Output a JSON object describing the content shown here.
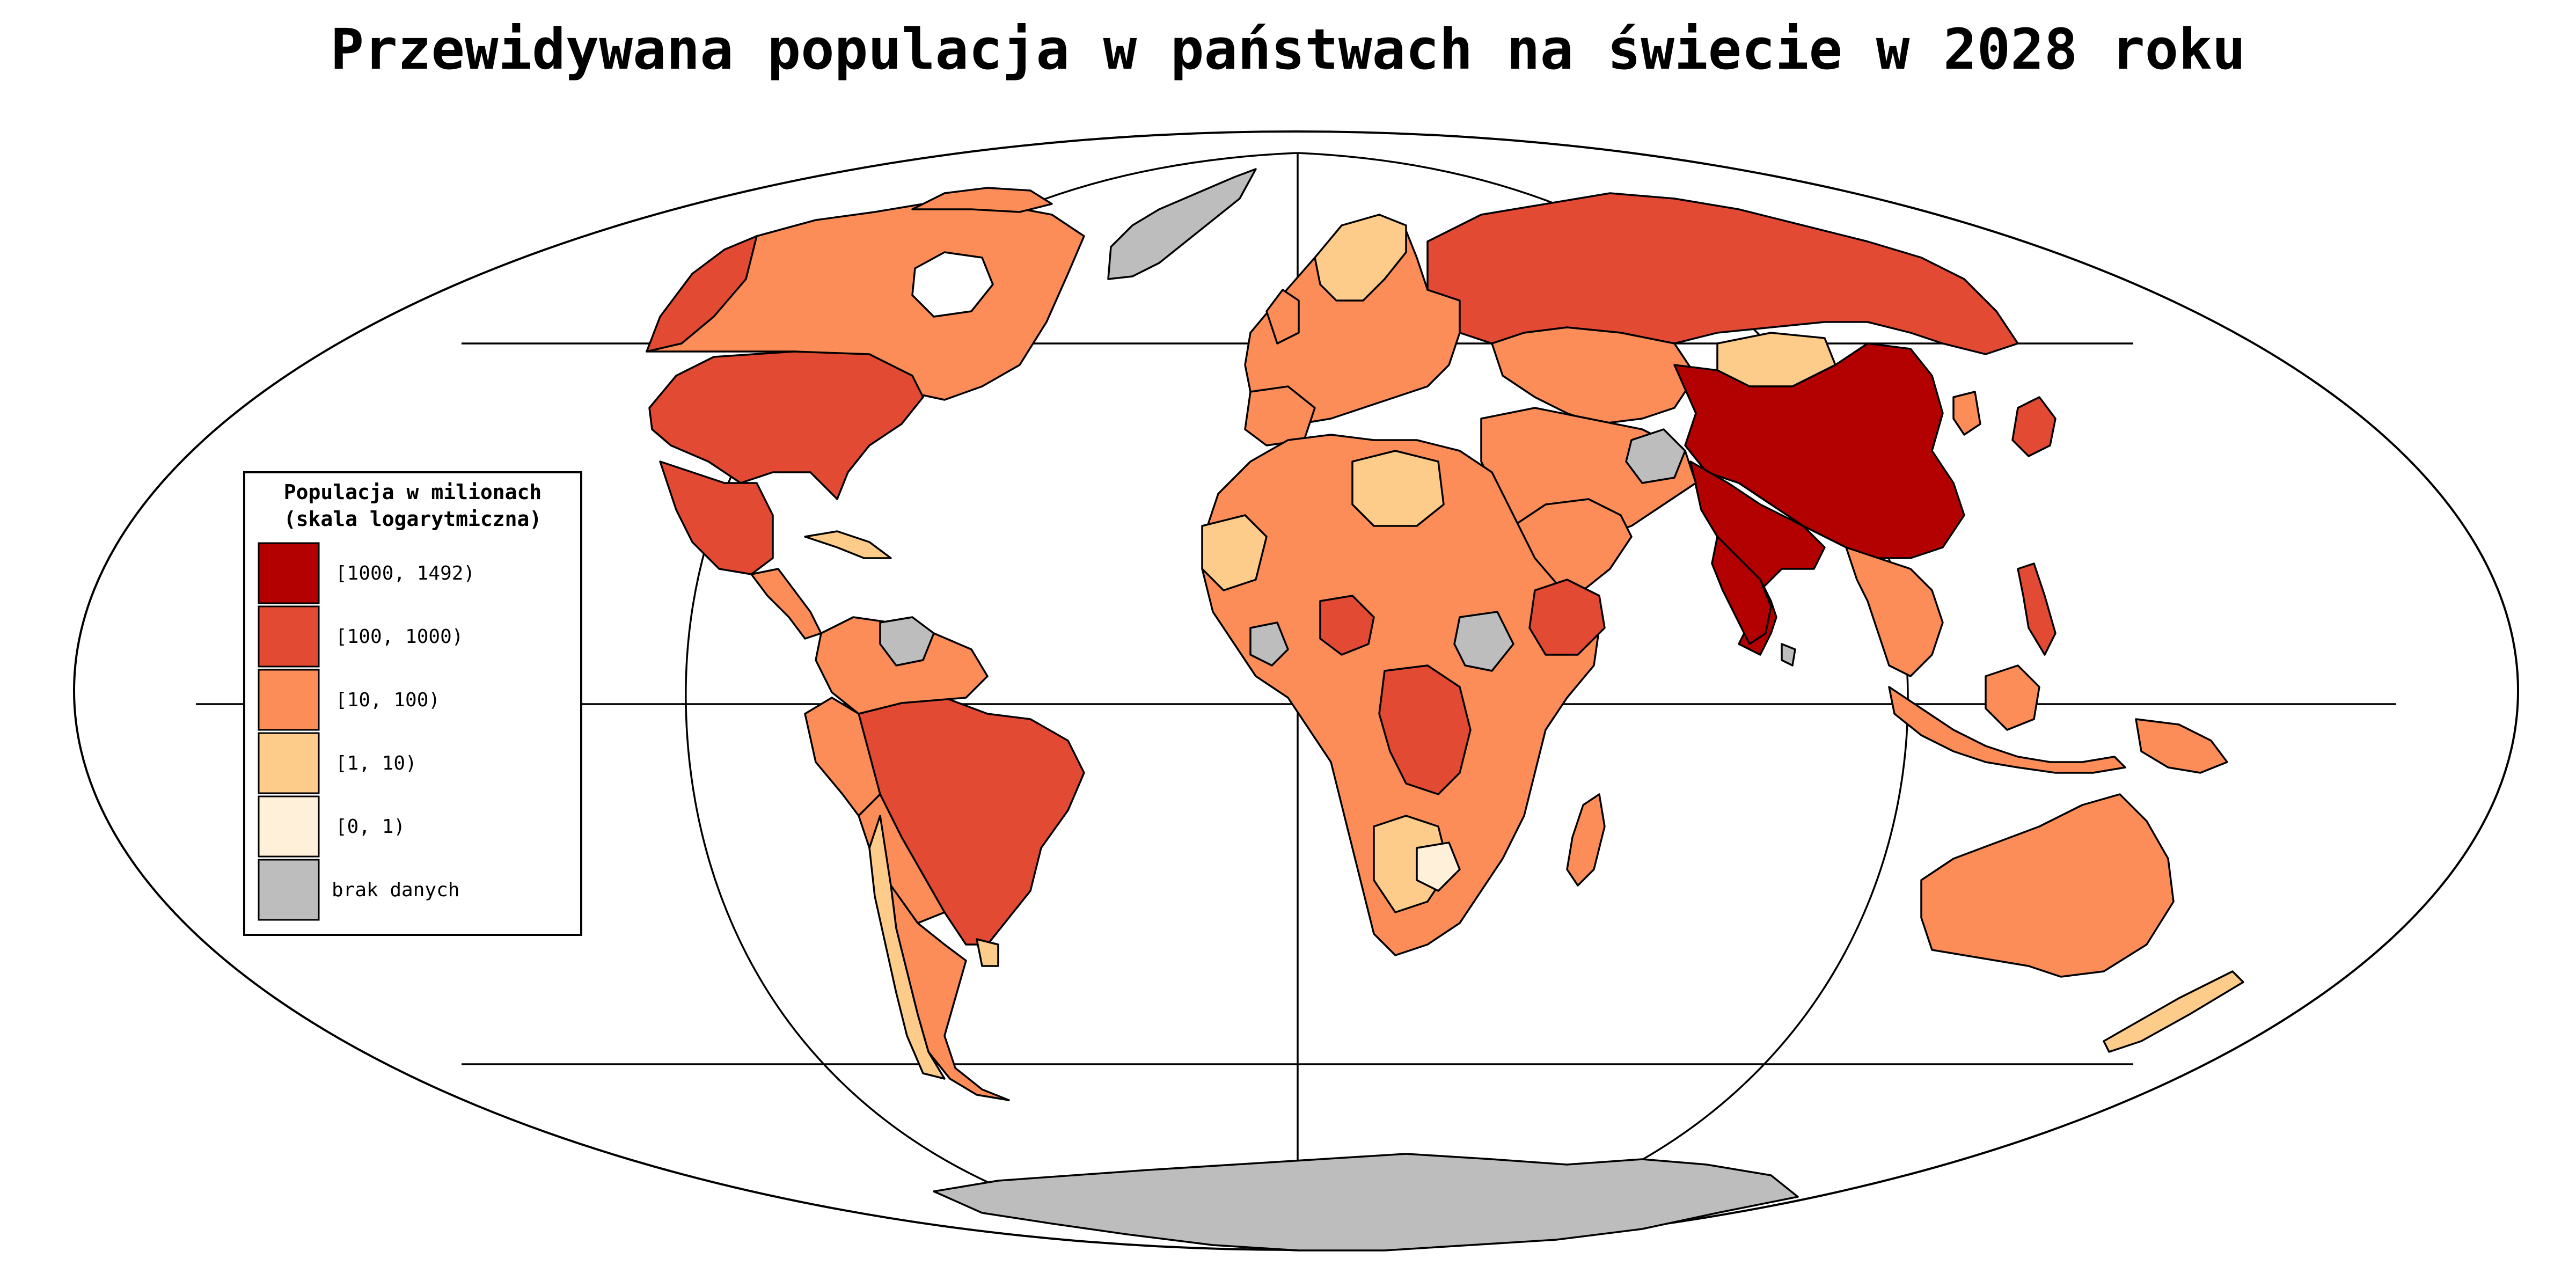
{
  "title": "Przewidywana populacja w państwach na świecie w 2028 roku",
  "legend": {
    "title_line1": "Populacja w milionach",
    "title_line2": "(skala logarytmiczna)",
    "entries": [
      {
        "label": "[1000, 1492)",
        "color": "#b30000"
      },
      {
        "label": "[100, 1000)",
        "color": "#e34a33"
      },
      {
        "label": "[10, 100)",
        "color": "#fc8d59"
      },
      {
        "label": "[1, 10)",
        "color": "#fdcc8a"
      },
      {
        "label": "[0, 1)",
        "color": "#fef0d9"
      },
      {
        "label": "brak danych",
        "color": "#bdbdbd"
      }
    ]
  },
  "colors": {
    "background": "#ffffff",
    "border": "#000000"
  }
}
